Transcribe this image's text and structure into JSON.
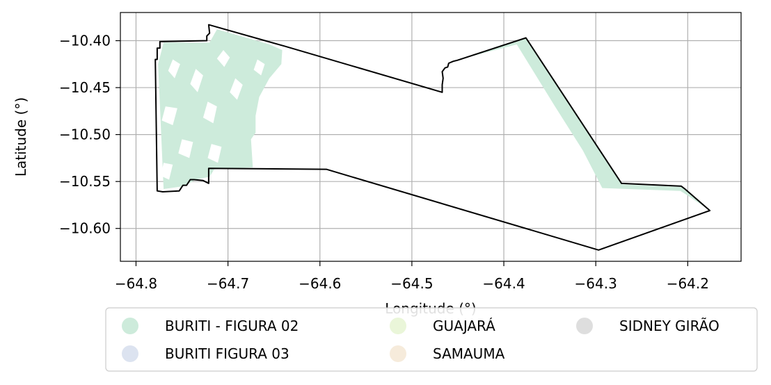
{
  "chart_data": {
    "type": "map",
    "xlabel": "Longitude (°)",
    "ylabel": "Latitude (°)",
    "xlim": [
      -64.817,
      -64.142
    ],
    "ylim": [
      -10.635,
      -10.37
    ],
    "grid": true,
    "x_ticks": [
      {
        "value": -64.8,
        "label": "−64.8"
      },
      {
        "value": -64.7,
        "label": "−64.7"
      },
      {
        "value": -64.6,
        "label": "−64.6"
      },
      {
        "value": -64.5,
        "label": "−64.5"
      },
      {
        "value": -64.4,
        "label": "−64.4"
      },
      {
        "value": -64.3,
        "label": "−64.3"
      },
      {
        "value": -64.2,
        "label": "−64.2"
      }
    ],
    "y_ticks": [
      {
        "value": -10.4,
        "label": "−10.40"
      },
      {
        "value": -10.45,
        "label": "−10.45"
      },
      {
        "value": -10.5,
        "label": "−10.50"
      },
      {
        "value": -10.55,
        "label": "−10.55"
      },
      {
        "value": -10.6,
        "label": "−10.60"
      }
    ],
    "legend": {
      "placement": "below",
      "columns": 3,
      "entries": [
        {
          "name": "BURITI - FIGURA 02",
          "color": "#cdebdb"
        },
        {
          "name": "BURITI FIGURA 03",
          "color": "#dce3f0"
        },
        {
          "name": "GUAJARÁ",
          "color": "#eaf6d9"
        },
        {
          "name": "SAMAUMA",
          "color": "#f6ebdb"
        },
        {
          "name": "SIDNEY GIRÃO",
          "color": "#dedede"
        }
      ]
    },
    "boundary": [
      [
        -64.721,
        -10.383
      ],
      [
        -64.638,
        -10.406
      ],
      [
        -64.467,
        -10.455
      ],
      [
        -64.467,
        -10.447
      ],
      [
        -64.466,
        -10.44
      ],
      [
        -64.467,
        -10.433
      ],
      [
        -64.464,
        -10.429
      ],
      [
        -64.461,
        -10.428
      ],
      [
        -64.46,
        -10.424
      ],
      [
        -64.455,
        -10.422
      ],
      [
        -64.451,
        -10.421
      ],
      [
        -64.376,
        -10.397
      ],
      [
        -64.272,
        -10.552
      ],
      [
        -64.207,
        -10.555
      ],
      [
        -64.203,
        -10.558
      ],
      [
        -64.176,
        -10.581
      ],
      [
        -64.297,
        -10.623
      ],
      [
        -64.593,
        -10.537
      ],
      [
        -64.721,
        -10.536
      ],
      [
        -64.721,
        -10.552
      ],
      [
        -64.727,
        -10.549
      ],
      [
        -64.737,
        -10.548
      ],
      [
        -64.741,
        -10.548
      ],
      [
        -64.745,
        -10.554
      ],
      [
        -64.749,
        -10.554
      ],
      [
        -64.753,
        -10.56
      ],
      [
        -64.771,
        -10.561
      ],
      [
        -64.777,
        -10.56
      ],
      [
        -64.779,
        -10.42
      ],
      [
        -64.777,
        -10.42
      ],
      [
        -64.777,
        -10.408
      ],
      [
        -64.774,
        -10.408
      ],
      [
        -64.774,
        -10.401
      ],
      [
        -64.723,
        -10.4
      ],
      [
        -64.723,
        -10.395
      ],
      [
        -64.72,
        -10.392
      ]
    ],
    "buriti_figura_02_areas": [
      [
        [
          -64.776,
          -10.425
        ],
        [
          -64.77,
          -10.402
        ],
        [
          -64.72,
          -10.402
        ],
        [
          -64.712,
          -10.388
        ],
        [
          -64.676,
          -10.398
        ],
        [
          -64.655,
          -10.404
        ],
        [
          -64.641,
          -10.41
        ],
        [
          -64.642,
          -10.425
        ],
        [
          -64.655,
          -10.44
        ],
        [
          -64.666,
          -10.46
        ],
        [
          -64.67,
          -10.48
        ],
        [
          -64.67,
          -10.498
        ],
        [
          -64.675,
          -10.505
        ],
        [
          -64.673,
          -10.535
        ],
        [
          -64.715,
          -10.537
        ],
        [
          -64.72,
          -10.545
        ],
        [
          -64.735,
          -10.548
        ],
        [
          -64.748,
          -10.555
        ],
        [
          -64.77,
          -10.558
        ]
      ],
      [
        [
          -64.376,
          -10.398
        ],
        [
          -64.452,
          -10.421
        ],
        [
          -64.386,
          -10.404
        ],
        [
          -64.345,
          -10.469
        ],
        [
          -64.314,
          -10.517
        ],
        [
          -64.293,
          -10.557
        ],
        [
          -64.208,
          -10.56
        ],
        [
          -64.2,
          -10.565
        ],
        [
          -64.176,
          -10.581
        ],
        [
          -64.206,
          -10.556
        ],
        [
          -64.272,
          -10.553
        ]
      ]
    ],
    "clearings": [
      [
        [
          -64.76,
          -10.42
        ],
        [
          -64.752,
          -10.425
        ],
        [
          -64.758,
          -10.44
        ],
        [
          -64.765,
          -10.432
        ]
      ],
      [
        [
          -64.735,
          -10.43
        ],
        [
          -64.727,
          -10.437
        ],
        [
          -64.733,
          -10.455
        ],
        [
          -64.741,
          -10.446
        ]
      ],
      [
        [
          -64.705,
          -10.41
        ],
        [
          -64.698,
          -10.418
        ],
        [
          -64.704,
          -10.428
        ],
        [
          -64.712,
          -10.419
        ]
      ],
      [
        [
          -64.768,
          -10.47
        ],
        [
          -64.755,
          -10.472
        ],
        [
          -64.76,
          -10.49
        ],
        [
          -64.772,
          -10.485
        ]
      ],
      [
        [
          -64.722,
          -10.465
        ],
        [
          -64.712,
          -10.47
        ],
        [
          -64.716,
          -10.488
        ],
        [
          -64.727,
          -10.482
        ]
      ],
      [
        [
          -64.692,
          -10.44
        ],
        [
          -64.684,
          -10.447
        ],
        [
          -64.69,
          -10.463
        ],
        [
          -64.698,
          -10.455
        ]
      ],
      [
        [
          -64.75,
          -10.505
        ],
        [
          -64.738,
          -10.508
        ],
        [
          -64.742,
          -10.525
        ],
        [
          -64.754,
          -10.52
        ]
      ],
      [
        [
          -64.718,
          -10.51
        ],
        [
          -64.707,
          -10.513
        ],
        [
          -64.711,
          -10.53
        ],
        [
          -64.722,
          -10.525
        ]
      ],
      [
        [
          -64.668,
          -10.42
        ],
        [
          -64.66,
          -10.425
        ],
        [
          -64.664,
          -10.437
        ],
        [
          -64.672,
          -10.431
        ]
      ],
      [
        [
          -64.77,
          -10.53
        ],
        [
          -64.76,
          -10.532
        ],
        [
          -64.764,
          -10.548
        ],
        [
          -64.773,
          -10.544
        ]
      ]
    ]
  }
}
